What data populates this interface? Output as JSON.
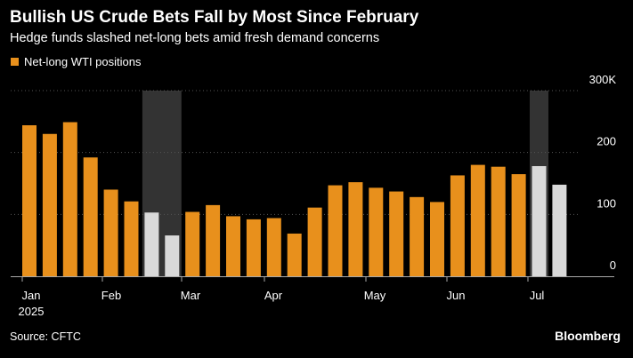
{
  "title": "Bullish US Crude Bets Fall by Most Since February",
  "subtitle": "Hedge funds slashed net-long bets amid fresh demand concerns",
  "source": "Source: CFTC",
  "brand": "Bloomberg",
  "colors": {
    "bar": "#e8901c",
    "bar_highlight": "#d9d9d9",
    "highlight_band": "#333333",
    "grid": "#555555",
    "axis": "#aaaaaa"
  },
  "chart_data": {
    "type": "bar",
    "legend": [
      "Net-long WTI positions"
    ],
    "legend_position": "top-left",
    "y_ticks": [
      "0",
      "100",
      "200",
      "300K"
    ],
    "ylim": [
      0,
      300
    ],
    "x_labels": [
      "Jan",
      "Feb",
      "Mar",
      "Apr",
      "May",
      "Jun",
      "Jul"
    ],
    "x_year_label": "2025",
    "grid": true,
    "series": [
      {
        "name": "Net-long WTI positions",
        "values": [
          244,
          230,
          249,
          192,
          140,
          121,
          103,
          66,
          104,
          115,
          97,
          92,
          94,
          69,
          111,
          147,
          152,
          143,
          137,
          128,
          120,
          163,
          180,
          177,
          165,
          178,
          148
        ],
        "highlighted_indices": [
          6,
          7,
          25,
          26
        ]
      }
    ],
    "highlight_bands": [
      [
        6,
        7
      ],
      [
        25,
        25
      ]
    ]
  }
}
